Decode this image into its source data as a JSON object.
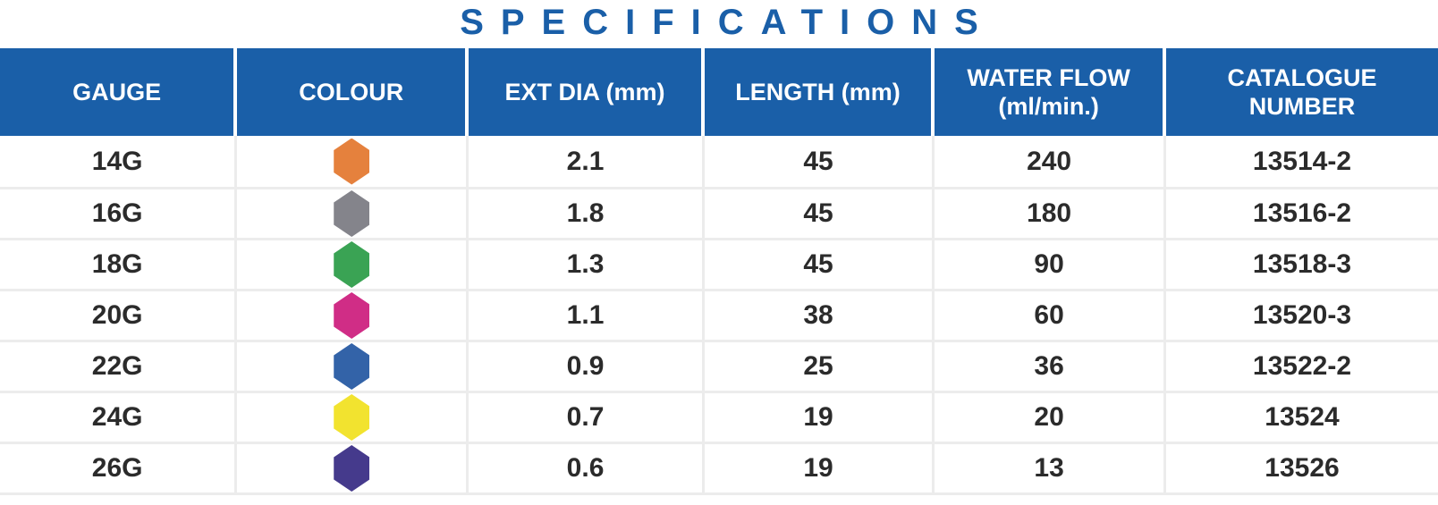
{
  "title": "SPECIFICATIONS",
  "accent_color": "#1a5fa8",
  "grid_color": "#ececec",
  "text_color": "#2b2b2b",
  "table": {
    "columns": [
      "GAUGE",
      "COLOUR",
      "EXT DIA (mm)",
      "LENGTH (mm)",
      "WATER FLOW (ml/min.)",
      "CATALOGUE NUMBER"
    ],
    "rows": [
      {
        "gauge": "14G",
        "colour_name": "orange",
        "colour_hex": "#e5813d",
        "ext_dia": "2.1",
        "length": "45",
        "water_flow": "240",
        "catalogue": "13514-2"
      },
      {
        "gauge": "16G",
        "colour_name": "grey",
        "colour_hex": "#84848b",
        "ext_dia": "1.8",
        "length": "45",
        "water_flow": "180",
        "catalogue": "13516-2"
      },
      {
        "gauge": "18G",
        "colour_name": "green",
        "colour_hex": "#3aa354",
        "ext_dia": "1.3",
        "length": "45",
        "water_flow": "90",
        "catalogue": "13518-3"
      },
      {
        "gauge": "20G",
        "colour_name": "magenta",
        "colour_hex": "#d02d86",
        "ext_dia": "1.1",
        "length": "38",
        "water_flow": "60",
        "catalogue": "13520-3"
      },
      {
        "gauge": "22G",
        "colour_name": "blue",
        "colour_hex": "#3363a8",
        "ext_dia": "0.9",
        "length": "25",
        "water_flow": "36",
        "catalogue": "13522-2"
      },
      {
        "gauge": "24G",
        "colour_name": "yellow",
        "colour_hex": "#f2e32f",
        "ext_dia": "0.7",
        "length": "19",
        "water_flow": "20",
        "catalogue": "13524"
      },
      {
        "gauge": "26G",
        "colour_name": "violet",
        "colour_hex": "#453a8c",
        "ext_dia": "0.6",
        "length": "19",
        "water_flow": "13",
        "catalogue": "13526"
      }
    ]
  }
}
